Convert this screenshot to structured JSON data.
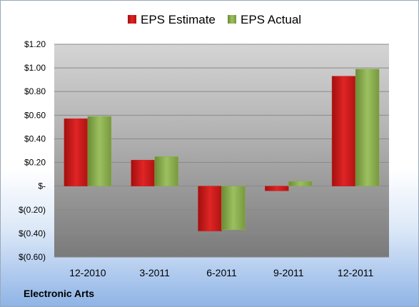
{
  "company": "Electronic Arts",
  "colors": {
    "estimate": "#d42020",
    "actual": "#8cb050"
  },
  "chart_data": {
    "type": "bar",
    "categories": [
      "12-2010",
      "3-2011",
      "6-2011",
      "9-2011",
      "12-2011"
    ],
    "series": [
      {
        "name": "EPS Estimate",
        "values": [
          0.57,
          0.22,
          -0.38,
          -0.04,
          0.93
        ]
      },
      {
        "name": "EPS Actual",
        "values": [
          0.59,
          0.25,
          -0.37,
          0.04,
          0.99
        ]
      }
    ],
    "ylim": [
      -0.6,
      1.2
    ],
    "yticks": [
      1.2,
      1.0,
      0.8,
      0.6,
      0.4,
      0.2,
      0.0,
      -0.2,
      -0.4,
      -0.6
    ],
    "ytick_labels": [
      "$1.20",
      "$1.00",
      "$0.80",
      "$0.60",
      "$0.40",
      "$0.20",
      "$-",
      "$(0.20)",
      "$(0.40)",
      "$(0.60)"
    ],
    "legend_position": "top-center",
    "grid": true
  }
}
